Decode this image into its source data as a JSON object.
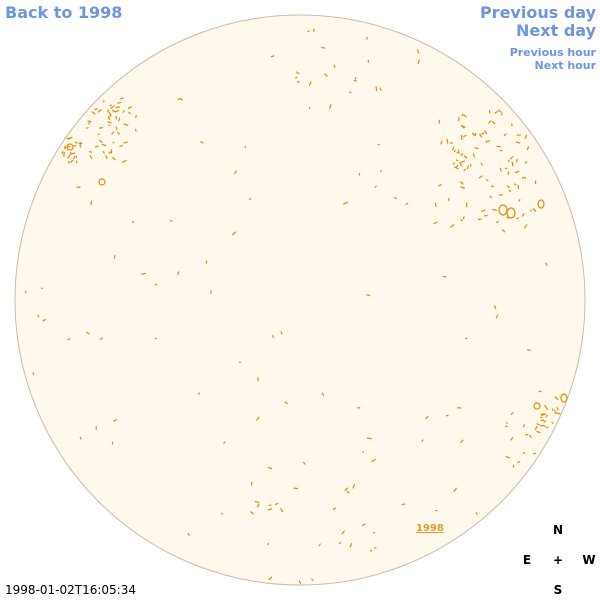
{
  "nav": {
    "back_label": "Back to 1998",
    "previous_day_label": "Previous day",
    "next_day_label": "Next day",
    "previous_hour_label": "Previous hour",
    "next_hour_label": "Next hour"
  },
  "timestamp": "1998-01-02T16:05:34",
  "year_label": "1998",
  "compass": {
    "north": "N",
    "east": "E",
    "center": "+",
    "west": "W",
    "south": "S"
  },
  "colors": {
    "disk_fill": "#fff8ec",
    "disk_edge": "#c8bca6",
    "contour": "#e68a00",
    "link": "#6d96dd"
  }
}
